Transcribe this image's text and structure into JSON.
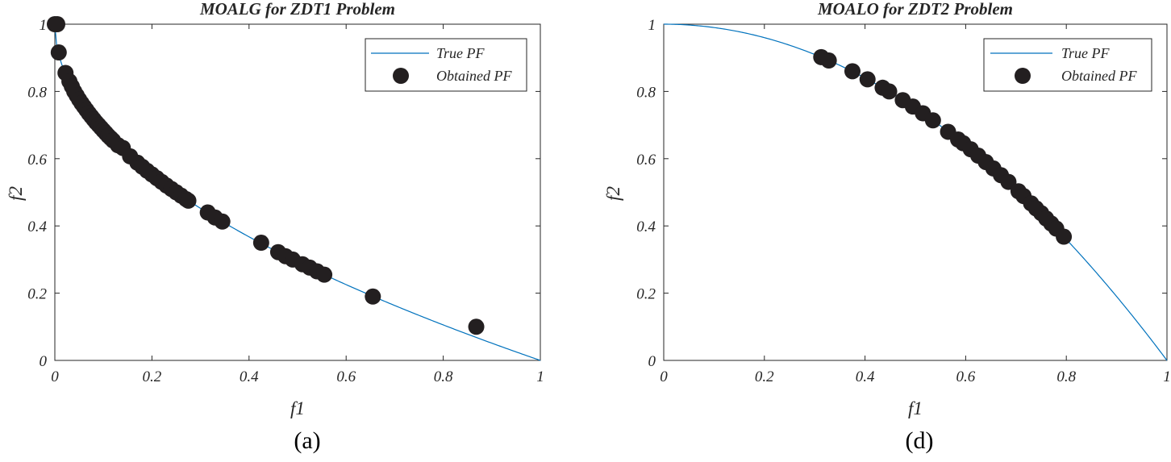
{
  "chart_data": [
    {
      "type": "scatter",
      "title": "MOALG for ZDT1 Problem",
      "xlabel": "f1",
      "ylabel": "f2",
      "xlim": [
        0,
        1
      ],
      "ylim": [
        0,
        1
      ],
      "xticks": [
        "0",
        "0.2",
        "0.4",
        "0.6",
        "0.8",
        "1"
      ],
      "yticks": [
        "0",
        "0.2",
        "0.4",
        "0.6",
        "0.8",
        "1"
      ],
      "legend_position": "top-right",
      "caption": "(a)",
      "true_pf": {
        "name": "True PF",
        "color": "#0072BD",
        "formula": "1 - sqrt(f1)"
      },
      "obtained_pf": {
        "name": "Obtained PF",
        "color": "#231f20",
        "x": [
          0.0,
          0.005,
          0.008,
          0.022,
          0.03,
          0.035,
          0.04,
          0.045,
          0.05,
          0.055,
          0.06,
          0.065,
          0.07,
          0.075,
          0.08,
          0.085,
          0.09,
          0.095,
          0.1,
          0.105,
          0.11,
          0.115,
          0.12,
          0.13,
          0.14,
          0.155,
          0.17,
          0.18,
          0.19,
          0.2,
          0.21,
          0.22,
          0.23,
          0.24,
          0.25,
          0.26,
          0.27,
          0.275,
          0.315,
          0.33,
          0.345,
          0.425,
          0.46,
          0.475,
          0.49,
          0.51,
          0.525,
          0.54,
          0.555,
          0.655,
          0.868
        ],
        "y": [
          1.0,
          1.0,
          0.916,
          0.855,
          0.83,
          0.815,
          0.8,
          0.788,
          0.776,
          0.765,
          0.755,
          0.745,
          0.735,
          0.726,
          0.717,
          0.708,
          0.7,
          0.692,
          0.684,
          0.676,
          0.668,
          0.661,
          0.654,
          0.64,
          0.632,
          0.607,
          0.588,
          0.576,
          0.564,
          0.553,
          0.542,
          0.531,
          0.52,
          0.51,
          0.5,
          0.49,
          0.48,
          0.475,
          0.44,
          0.425,
          0.413,
          0.35,
          0.322,
          0.31,
          0.3,
          0.286,
          0.276,
          0.265,
          0.255,
          0.19,
          0.1
        ]
      }
    },
    {
      "type": "scatter",
      "title": "MOALO for ZDT2 Problem",
      "xlabel": "f1",
      "ylabel": "f2",
      "xlim": [
        0,
        1
      ],
      "ylim": [
        0,
        1
      ],
      "xticks": [
        "0",
        "0.2",
        "0.4",
        "0.6",
        "0.8",
        "1"
      ],
      "yticks": [
        "0",
        "0.2",
        "0.4",
        "0.6",
        "0.8",
        "1"
      ],
      "legend_position": "top-right",
      "caption": "(d)",
      "true_pf": {
        "name": "True PF",
        "color": "#0072BD",
        "formula": "1 - f1^2"
      },
      "obtained_pf": {
        "name": "Obtained PF",
        "color": "#231f20",
        "x": [
          0.313,
          0.328,
          0.375,
          0.405,
          0.435,
          0.448,
          0.475,
          0.495,
          0.515,
          0.535,
          0.565,
          0.585,
          0.595,
          0.61,
          0.625,
          0.64,
          0.655,
          0.67,
          0.685,
          0.705,
          0.715,
          0.73,
          0.74,
          0.75,
          0.76,
          0.77,
          0.78,
          0.795
        ],
        "y": [
          0.902,
          0.892,
          0.86,
          0.836,
          0.811,
          0.8,
          0.774,
          0.755,
          0.735,
          0.714,
          0.68,
          0.657,
          0.646,
          0.628,
          0.609,
          0.59,
          0.571,
          0.551,
          0.531,
          0.503,
          0.489,
          0.467,
          0.452,
          0.438,
          0.422,
          0.407,
          0.392,
          0.368
        ]
      }
    }
  ]
}
